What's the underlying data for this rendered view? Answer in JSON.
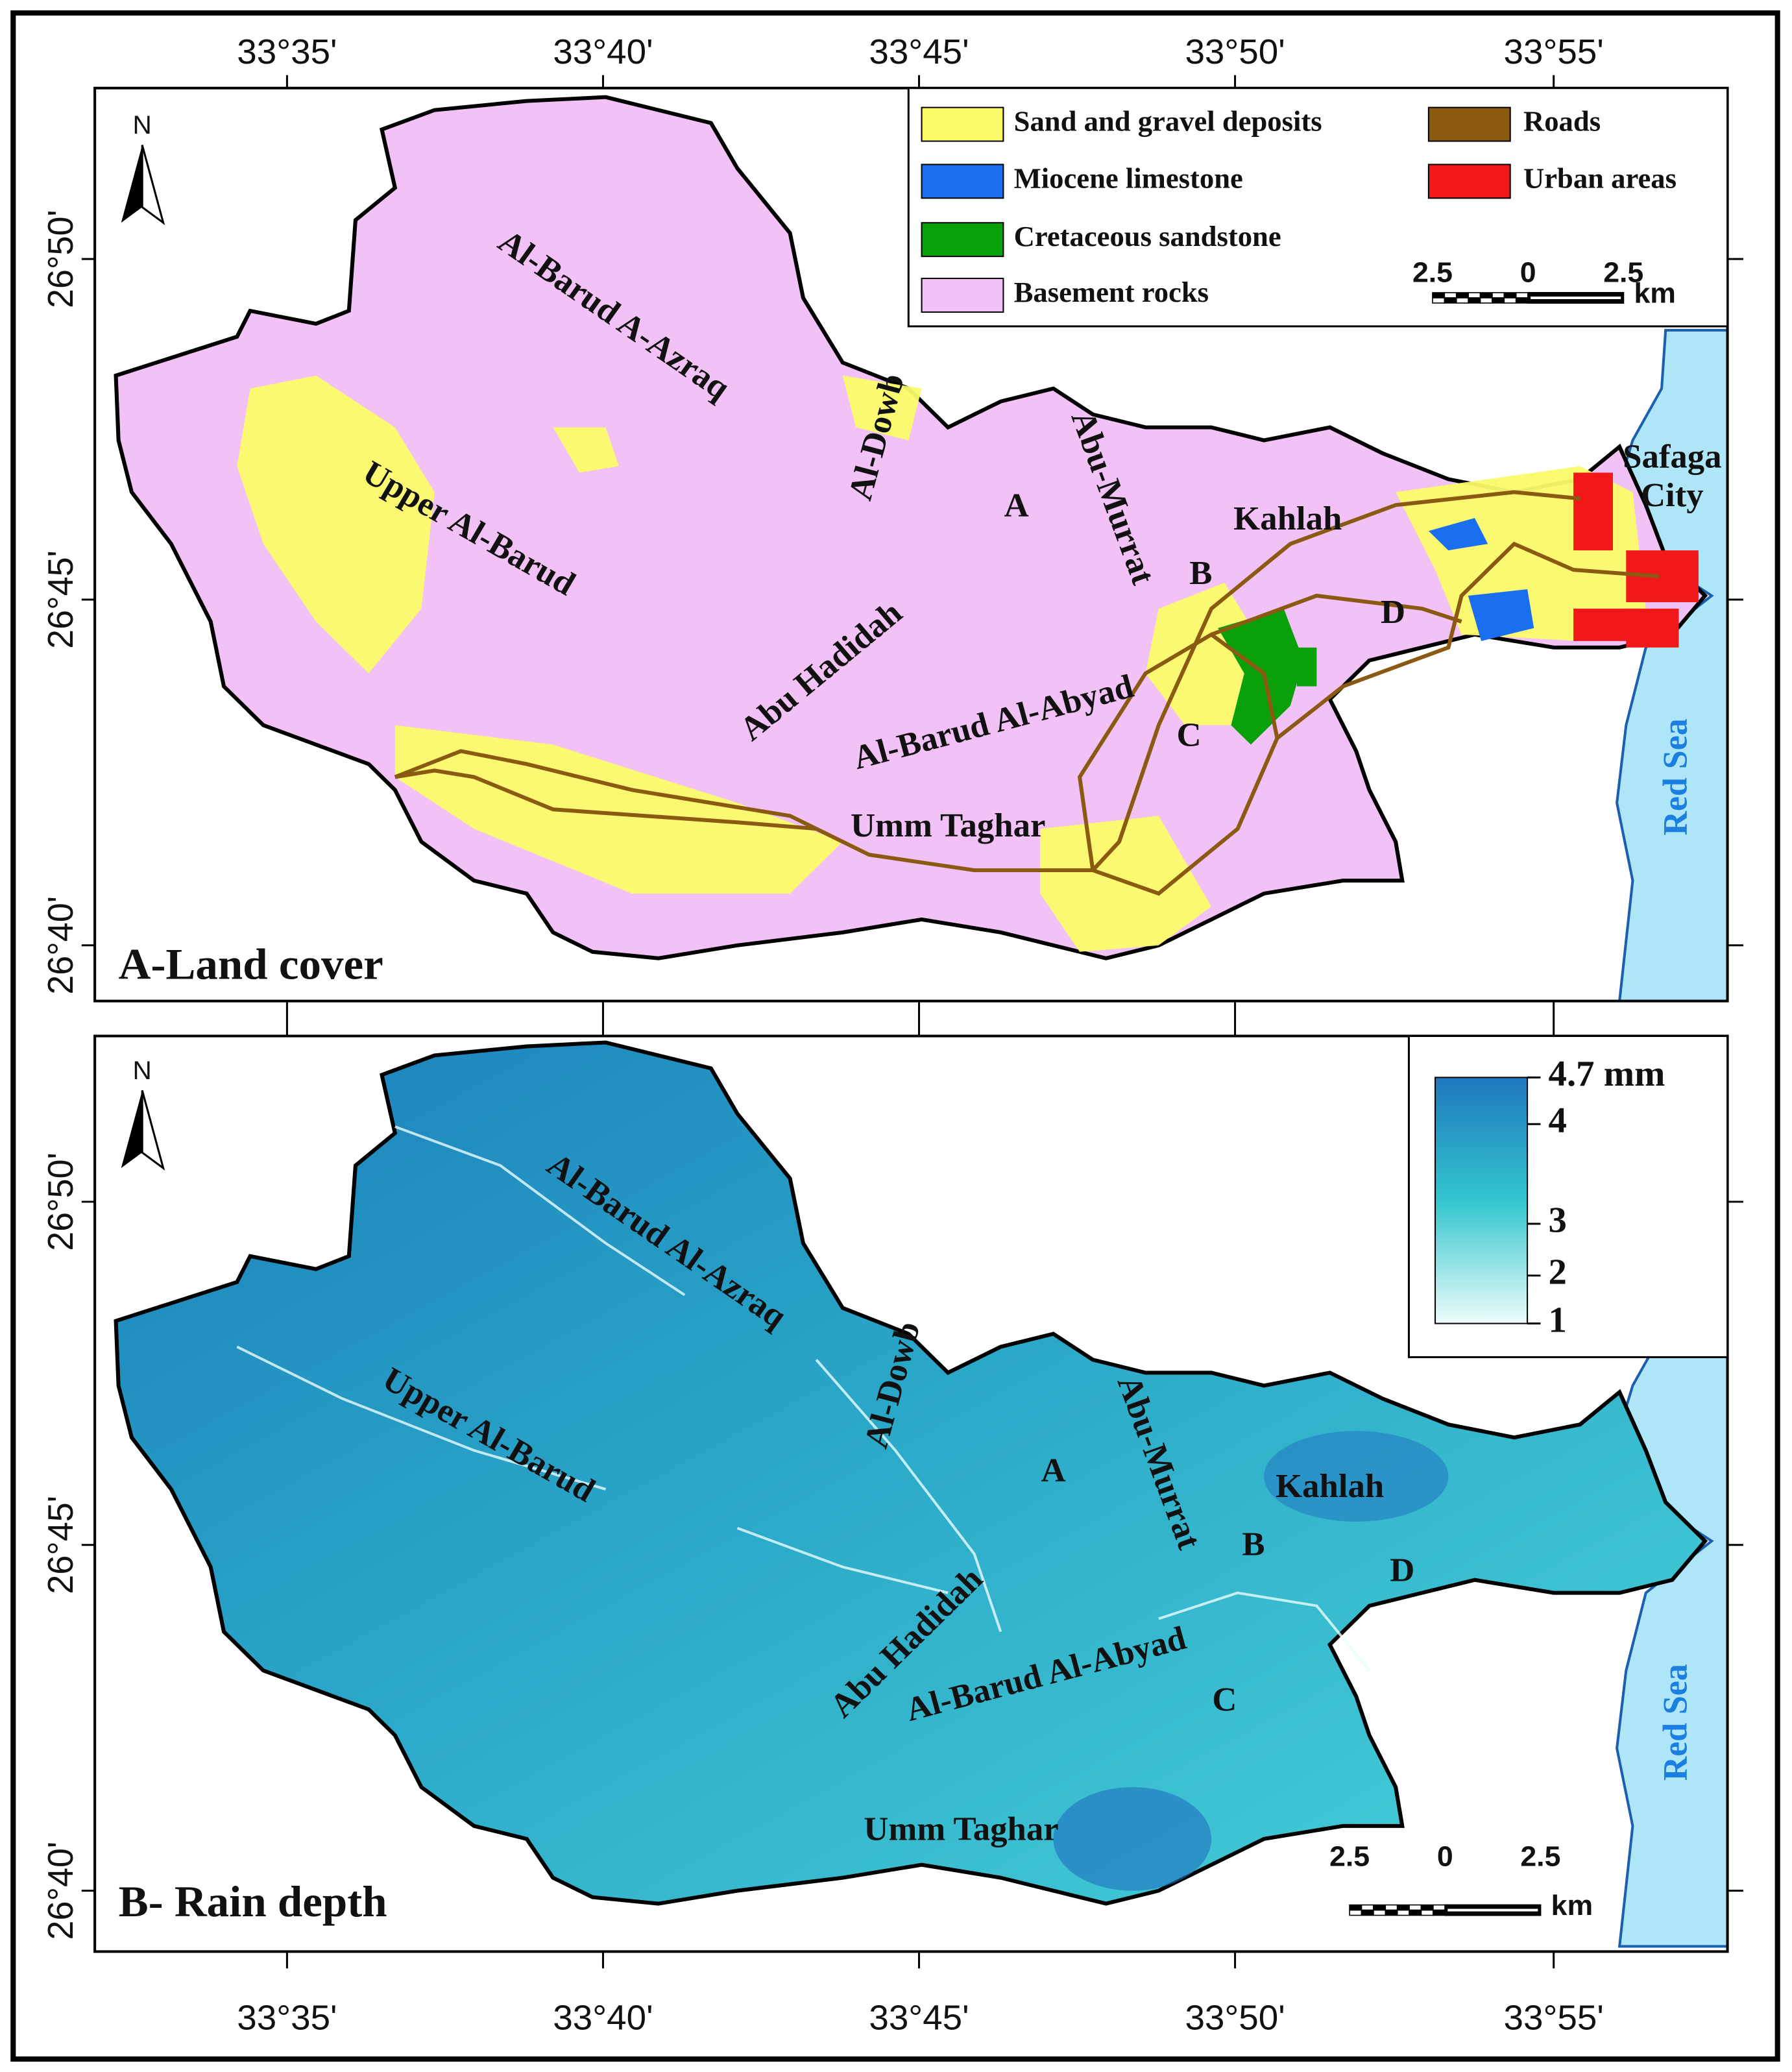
{
  "axes": {
    "top": [
      "33°35'",
      "33°40'",
      "33°45'",
      "33°50'",
      "33°55'"
    ],
    "bottom": [
      "33°35'",
      "33°40'",
      "33°45'",
      "33°50'",
      "33°55'"
    ],
    "left_a": [
      "26°50'",
      "26°45'",
      "26°40'"
    ],
    "left_b": [
      "26°50'",
      "26°45'",
      "26°40'"
    ]
  },
  "panels": [
    {
      "title": "A-Land cover",
      "north": "N",
      "labels": [
        "Al-Barud A-Azraq",
        "Al-Dowb",
        "Abu-Murrat",
        "A",
        "Kahlah",
        "B",
        "D",
        "Upper Al-Barud",
        "Abu Hadidah",
        "Al-Barud Al-Abyad",
        "C",
        "Umm Taghar",
        "Safaga",
        "City",
        "Red Sea"
      ],
      "legend": [
        {
          "label": "Sand and gravel deposits",
          "color": "#fbfb6a"
        },
        {
          "label": "Miocene limestone",
          "color": "#1a6ff0"
        },
        {
          "label": "Cretaceous sandstone",
          "color": "#0aa00a"
        },
        {
          "label": "Basement rocks",
          "color": "#f2c2f6"
        },
        {
          "label": "Roads",
          "color": "#8a5a12"
        },
        {
          "label": "Urban areas",
          "color": "#f01818"
        }
      ],
      "scale_bar": [
        "2.5",
        "0",
        "2.5",
        "km"
      ]
    },
    {
      "title": "B- Rain depth",
      "north": "N",
      "labels": [
        "Al-Barud Al-Azraq",
        "Al-Dowb",
        "Abu-Murrat",
        "A",
        "Kahlah",
        "B",
        "D",
        "Upper Al-Barud",
        "Abu Hadidah",
        "Al-Barud Al-Abyad",
        "C",
        "Umm Taghar",
        "Red Sea"
      ],
      "colorbar": [
        "4.7 mm",
        "4",
        "3",
        "2",
        "1"
      ],
      "scale_bar": [
        "2.5",
        "0",
        "2.5",
        "km"
      ]
    }
  ]
}
